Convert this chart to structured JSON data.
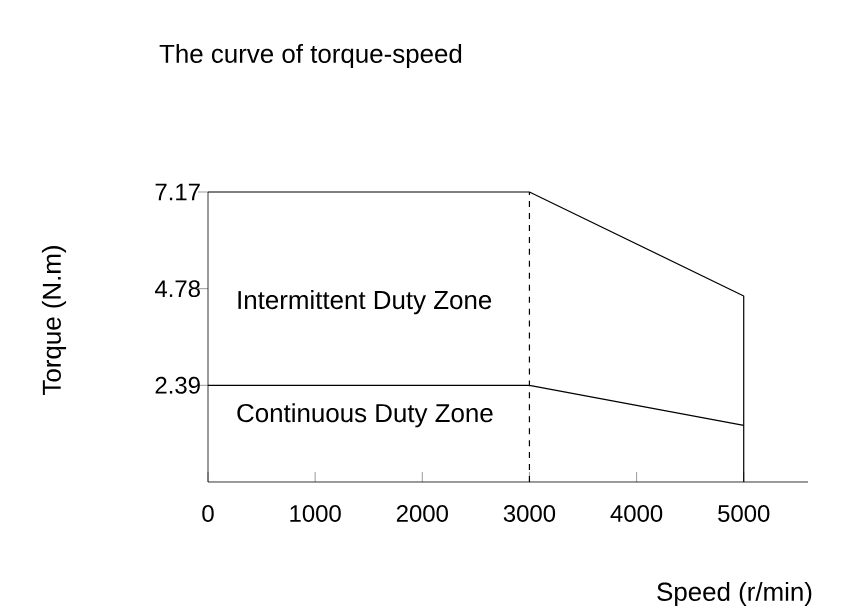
{
  "chart_data": {
    "type": "line",
    "title": "The curve of torque-speed",
    "xlabel": "Speed (r/min)",
    "ylabel": "Torque (N.m)",
    "xlim": [
      0,
      5600
    ],
    "xticks": [
      0,
      1000,
      2000,
      3000,
      4000,
      5000
    ],
    "ylim": [
      0,
      7.17
    ],
    "yticks": [
      2.39,
      4.78,
      7.17
    ],
    "series": [
      {
        "x": [
          0,
          3000,
          5000,
          5000
        ],
        "values": [
          7.17,
          7.17,
          4.6,
          1.4
        ],
        "color": "#000000"
      },
      {
        "x": [
          0,
          3000,
          5000,
          5000
        ],
        "values": [
          2.39,
          2.39,
          1.4,
          0
        ],
        "color": "#000000"
      }
    ],
    "ref_lines": [
      {
        "axis": "x",
        "value": 3000,
        "line_style": "dashed",
        "color": "#000000"
      }
    ],
    "annotations": [
      "Intermittent Duty Zone",
      "Continuous Duty Zone"
    ],
    "grid": false,
    "marker": "none",
    "line_style": "solid"
  }
}
